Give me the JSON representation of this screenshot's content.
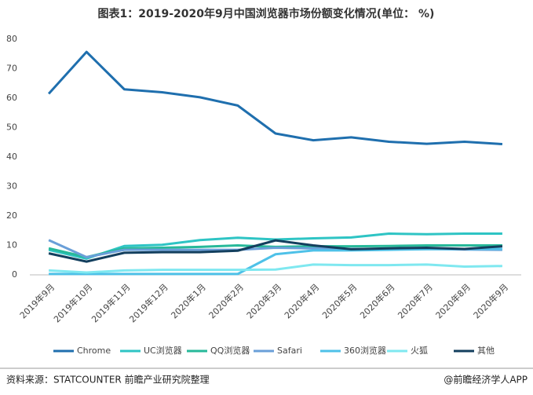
{
  "chart_data": {
    "type": "line",
    "title": "图表1：2019-2020年9月中国浏览器市场份额变化情况(单位： %)",
    "source": "资料来源：STATCOUNTER 前瞻产业研究院整理",
    "credit": "@前瞻经济学人APP",
    "categories": [
      "2019年9月",
      "2019年10月",
      "2019年11月",
      "2019年12月",
      "2020年1月",
      "2020年2月",
      "2020年3月",
      "2020年4月",
      "2020年5月",
      "2020年6月",
      "2020年7月",
      "2020年8月",
      "2020年9月"
    ],
    "ylim": [
      0,
      80
    ],
    "yticks": [
      0,
      10,
      20,
      30,
      40,
      50,
      60,
      70,
      80
    ],
    "grid": false,
    "legend": "bottom",
    "series": [
      {
        "name": "Chrome",
        "color": "#1f6fae",
        "values": [
          61.5,
          75.7,
          63,
          62,
          60.3,
          57.5,
          48,
          45.7,
          46.7,
          45.2,
          44.5,
          45.2,
          44.4
        ]
      },
      {
        "name": "UC浏览器",
        "color": "#2ec4c4",
        "values": [
          8.5,
          5.5,
          9.8,
          10.2,
          11.8,
          12.6,
          12,
          12.4,
          12.7,
          14,
          13.8,
          14,
          14
        ]
      },
      {
        "name": "QQ浏览器",
        "color": "#27b99a",
        "values": [
          9,
          6,
          9,
          9.2,
          9.5,
          10,
          9.5,
          9.7,
          9.7,
          9.8,
          10,
          10,
          10
        ]
      },
      {
        "name": "Safari",
        "color": "#6a9fd8",
        "values": [
          11.8,
          6,
          8.5,
          8.5,
          8.5,
          8.5,
          9.2,
          9,
          8.8,
          8.8,
          8.8,
          8.6,
          8.5
        ]
      },
      {
        "name": "360浏览器",
        "color": "#4ec1e8",
        "values": [
          0.3,
          0.3,
          0.3,
          0.3,
          0.3,
          0.3,
          7,
          8.3,
          8.3,
          8.5,
          8.7,
          8.8,
          8.8
        ]
      },
      {
        "name": "火狐",
        "color": "#7fe8f0",
        "values": [
          1.5,
          0.8,
          1.5,
          1.7,
          1.7,
          1.7,
          1.8,
          3.5,
          3.3,
          3.3,
          3.5,
          2.8,
          3
        ]
      },
      {
        "name": "其他",
        "color": "#133f5e",
        "values": [
          7.3,
          4.5,
          7.5,
          7.7,
          7.7,
          8.2,
          11.7,
          10,
          8.7,
          9,
          9.2,
          8.8,
          9.7
        ]
      }
    ]
  }
}
